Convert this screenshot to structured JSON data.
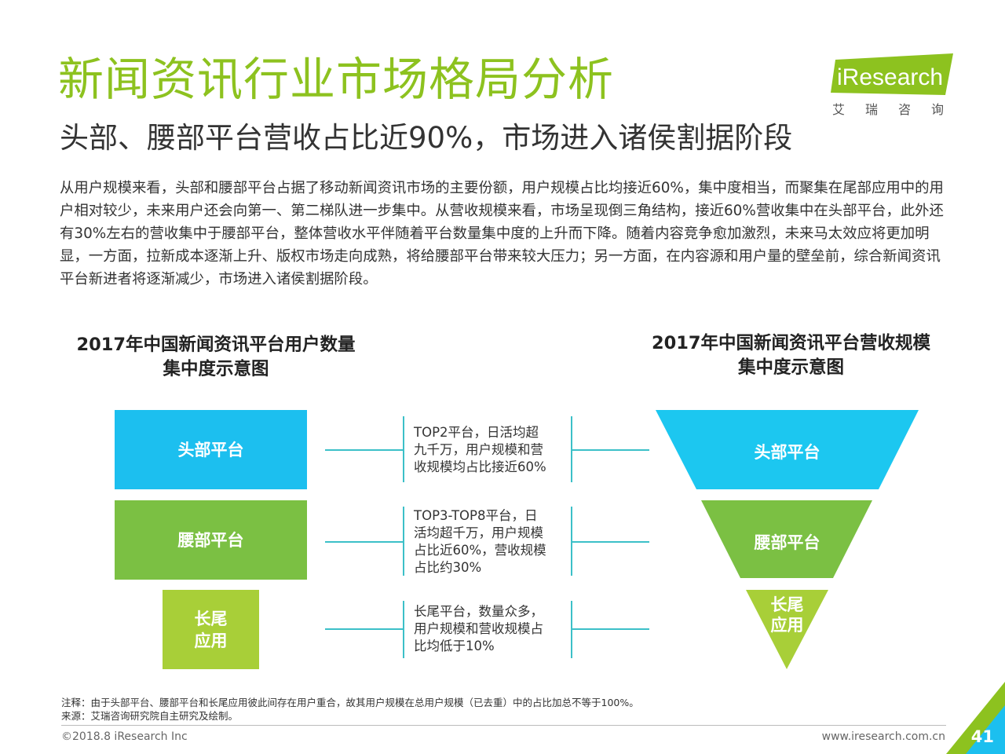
{
  "header": {
    "title": "新闻资讯行业市场格局分析",
    "subtitle": "头部、腰部平台营收占比近90%，市场进入诸侯割据阶段",
    "logo_text": "iResearch",
    "logo_cn": "艾瑞咨询"
  },
  "body": {
    "paragraph": "从用户规模来看，头部和腰部平台占据了移动新闻资讯市场的主要份额，用户规模占比均接近60%，集中度相当，而聚集在尾部应用中的用户相对较少，未来用户还会向第一、第二梯队进一步集中。从营收规模来看，市场呈现倒三角结构，接近60%营收集中在头部平台，此外还有30%左右的营收集中于腰部平台，整体营收水平伴随着平台数量集中度的上升而下降。随着内容竞争愈加激烈，未来马太效应将更加明显，一方面，拉新成本逐渐上升、版权市场走向成熟，将给腰部平台带来较大压力；另一方面，在内容源和用户量的壁垒前，综合新闻资讯平台新进者将逐渐减少，市场进入诸侯割据阶段。"
  },
  "left_chart": {
    "title_line1": "2017年中国新闻资讯平台用户数量",
    "title_line2": "集中度示意图",
    "tiers": [
      {
        "label": "头部平台",
        "color": "#1cbfef"
      },
      {
        "label": "腰部平台",
        "color": "#7bc043"
      },
      {
        "label_line1": "长尾",
        "label_line2": "应用",
        "color": "#a8cf38"
      }
    ]
  },
  "descriptions": [
    {
      "lines": [
        "TOP2平台，日活均超",
        "九千万，用户规模和营",
        "收规模均占比接近60%"
      ]
    },
    {
      "lines": [
        "TOP3-TOP8平台，日",
        "活均超千万，用户规模",
        "占比近60%，营收规模",
        "占比约30%"
      ]
    },
    {
      "lines": [
        "长尾平台，数量众多，",
        "用户规模和营收规模占",
        "比均低于10%"
      ]
    }
  ],
  "right_chart": {
    "title_line1": "2017年中国新闻资讯平台营收规模",
    "title_line2": "集中度示意图",
    "tiers": [
      {
        "label": "头部平台",
        "color": "#1cc7f0"
      },
      {
        "label": "腰部平台",
        "color": "#7bc043"
      },
      {
        "label_line1": "长尾",
        "label_line2": "应用",
        "color": "#a8cf38"
      }
    ]
  },
  "notes": {
    "note": "注释：由于头部平台、腰部平台和长尾应用彼此间存在用户重合，故其用户规模在总用户规模（已去重）中的占比加总不等于100%。",
    "source": "来源：艾瑞咨询研究院自主研究及绘制。"
  },
  "footer": {
    "copyright": "©2018.8 iResearch Inc",
    "website": "www.iresearch.com.cn",
    "page_number": "41"
  }
}
